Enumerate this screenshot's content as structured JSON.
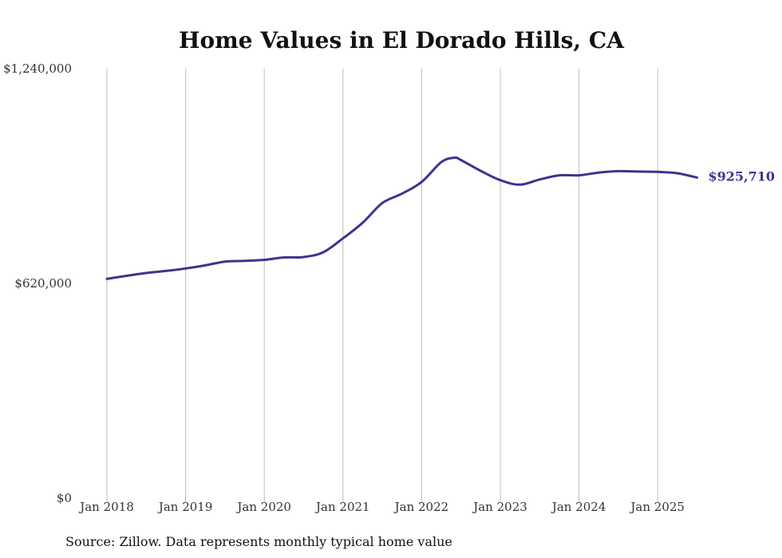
{
  "chart_data": {
    "type": "line",
    "title": "Home Values in El Dorado Hills, CA",
    "xlabel": "",
    "ylabel": "",
    "ylim": [
      0,
      1240000
    ],
    "yticks": [
      {
        "value": 0,
        "label": "$0"
      },
      {
        "value": 620000,
        "label": "$620,000"
      },
      {
        "value": 1240000,
        "label": "$1,240,000"
      }
    ],
    "xticks": [
      {
        "value": "2018-01",
        "label": "Jan 2018"
      },
      {
        "value": "2019-01",
        "label": "Jan 2019"
      },
      {
        "value": "2020-01",
        "label": "Jan 2020"
      },
      {
        "value": "2021-01",
        "label": "Jan 2021"
      },
      {
        "value": "2022-01",
        "label": "Jan 2022"
      },
      {
        "value": "2023-01",
        "label": "Jan 2023"
      },
      {
        "value": "2024-01",
        "label": "Jan 2024"
      },
      {
        "value": "2025-01",
        "label": "Jan 2025"
      }
    ],
    "grid": {
      "vertical": true,
      "horizontal": false
    },
    "series": [
      {
        "color": "#3b3590",
        "points": [
          [
            "2018-01",
            633000
          ],
          [
            "2018-04",
            642000
          ],
          [
            "2018-07",
            650000
          ],
          [
            "2018-10",
            656000
          ],
          [
            "2019-01",
            663000
          ],
          [
            "2019-04",
            672000
          ],
          [
            "2019-07",
            683000
          ],
          [
            "2019-10",
            685000
          ],
          [
            "2020-01",
            688000
          ],
          [
            "2020-04",
            695000
          ],
          [
            "2020-07",
            696000
          ],
          [
            "2020-10",
            710000
          ],
          [
            "2021-01",
            750000
          ],
          [
            "2021-04",
            795000
          ],
          [
            "2021-07",
            852000
          ],
          [
            "2021-10",
            879000
          ],
          [
            "2022-01",
            913000
          ],
          [
            "2022-04",
            970000
          ],
          [
            "2022-06",
            983000
          ],
          [
            "2022-07",
            976000
          ],
          [
            "2022-10",
            945000
          ],
          [
            "2023-01",
            918000
          ],
          [
            "2023-04",
            905000
          ],
          [
            "2023-07",
            920000
          ],
          [
            "2023-10",
            932000
          ],
          [
            "2024-01",
            932000
          ],
          [
            "2024-04",
            940000
          ],
          [
            "2024-07",
            944000
          ],
          [
            "2024-10",
            943000
          ],
          [
            "2025-01",
            942000
          ],
          [
            "2025-04",
            938000
          ],
          [
            "2025-07",
            925710
          ]
        ],
        "end_label": "$925,710"
      }
    ],
    "source": "Source: Zillow. Data represents monthly typical home value"
  }
}
